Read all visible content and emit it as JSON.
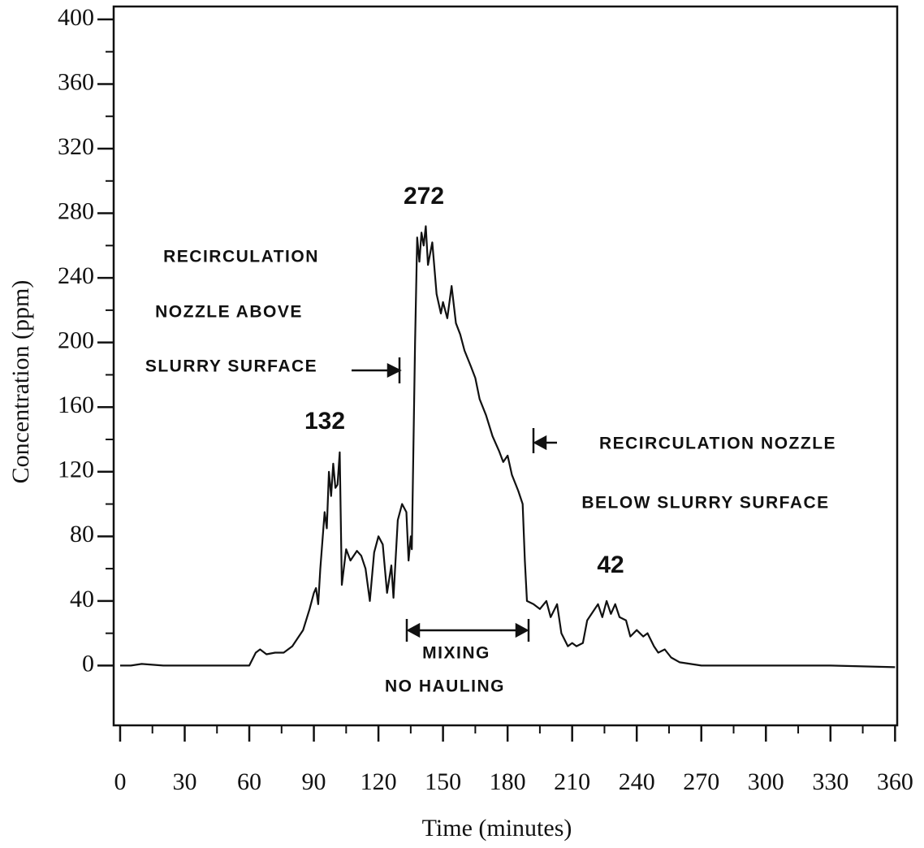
{
  "chart_data": {
    "type": "line",
    "x_label": "Time (minutes)",
    "y_label": "Concentration (ppm)",
    "x": [
      0,
      5,
      10,
      20,
      60,
      63,
      65,
      68,
      72,
      76,
      80,
      83,
      85,
      88,
      90,
      91,
      92,
      93,
      95,
      96,
      97,
      98,
      99,
      100,
      101,
      102,
      103,
      105,
      107,
      110,
      112,
      114,
      116,
      118,
      120,
      122,
      124,
      126,
      127,
      129,
      131,
      133,
      134,
      135,
      135.5,
      137,
      138,
      139,
      140,
      141,
      142,
      143,
      145,
      147,
      149,
      150,
      152,
      154,
      156,
      158,
      160,
      163,
      165,
      167,
      170,
      173,
      176,
      178,
      180,
      182,
      185,
      187,
      188,
      189,
      192,
      195,
      198,
      200,
      203,
      205,
      208,
      210,
      212,
      215,
      217,
      220,
      222,
      224,
      226,
      228,
      230,
      232,
      235,
      237,
      240,
      243,
      245,
      248,
      250,
      253,
      256,
      260,
      265,
      270,
      300,
      330,
      360
    ],
    "values": [
      0,
      0,
      1,
      0,
      0,
      8,
      10,
      7,
      8,
      8,
      12,
      18,
      22,
      35,
      45,
      48,
      38,
      60,
      95,
      85,
      120,
      105,
      125,
      110,
      112,
      132,
      50,
      72,
      65,
      71,
      68,
      60,
      40,
      70,
      80,
      75,
      45,
      62,
      42,
      90,
      100,
      95,
      65,
      80,
      72,
      200,
      265,
      250,
      268,
      260,
      272,
      248,
      262,
      230,
      218,
      225,
      215,
      235,
      212,
      205,
      195,
      185,
      178,
      165,
      155,
      142,
      133,
      126,
      130,
      118,
      108,
      100,
      65,
      40,
      38,
      35,
      40,
      30,
      38,
      20,
      12,
      14,
      12,
      14,
      28,
      34,
      38,
      30,
      40,
      32,
      38,
      30,
      28,
      18,
      22,
      18,
      20,
      12,
      8,
      10,
      5,
      2,
      1,
      0,
      0,
      0,
      -1
    ],
    "color": "#111111",
    "xlim": [
      -3,
      361
    ],
    "ylim": [
      -37,
      408
    ],
    "xticks": [
      0,
      30,
      60,
      90,
      120,
      150,
      180,
      210,
      240,
      270,
      300,
      330,
      360
    ],
    "yticks": [
      0,
      40,
      80,
      120,
      160,
      200,
      240,
      280,
      320,
      360,
      400
    ],
    "xticks_minor": [
      15,
      45,
      75,
      105,
      135,
      165,
      195,
      225,
      255,
      285,
      315,
      345
    ],
    "yticks_minor": [
      20,
      60,
      100,
      140,
      180,
      220,
      260,
      300,
      340,
      380
    ],
    "annotations": [
      "272",
      "132",
      "42",
      "RECIRCULATION",
      "NOZZLE ABOVE",
      "SLURRY SURFACE",
      "RECIRCULATION NOZZLE",
      "BELOW SLURRY SURFACE",
      "MIXING",
      "NO HAULING"
    ]
  }
}
